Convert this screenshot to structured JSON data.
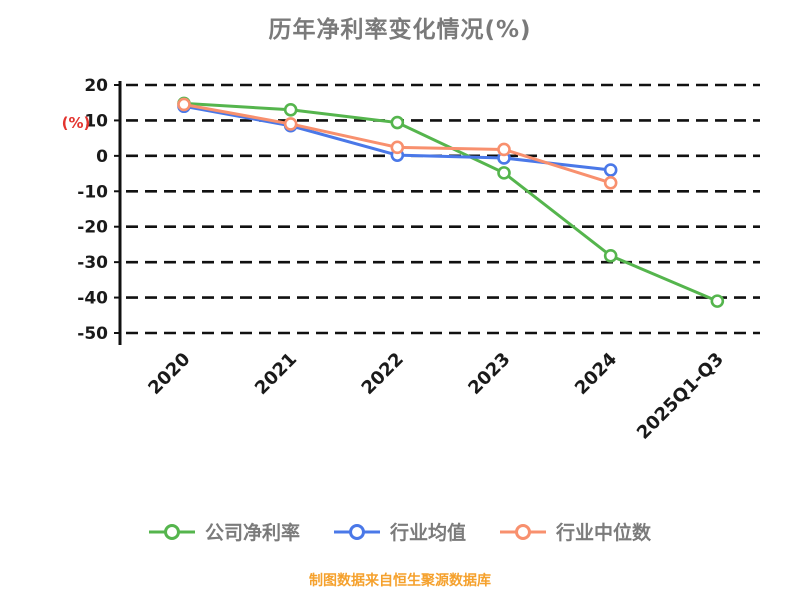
{
  "chart_data": {
    "type": "line",
    "title": "历年净利率变化情况(%)",
    "ylabel": "(%)",
    "ylim": [
      -50,
      20
    ],
    "yticks": [
      20,
      10,
      0,
      -10,
      -20,
      -30,
      -40,
      -50
    ],
    "categories": [
      "2020",
      "2021",
      "2022",
      "2023",
      "2024",
      "2025Q1-Q3"
    ],
    "series": [
      {
        "name": "公司净利率",
        "color": "#55b54d",
        "values": [
          14.8,
          13.0,
          9.4,
          -4.8,
          -28.2,
          -41.0
        ]
      },
      {
        "name": "行业均值",
        "color": "#4a78e8",
        "values": [
          14.0,
          8.5,
          0.2,
          -0.6,
          -4.0,
          null
        ]
      },
      {
        "name": "行业中位数",
        "color": "#f8906e",
        "values": [
          14.5,
          9.0,
          2.4,
          1.8,
          -7.6,
          null
        ]
      }
    ],
    "grid": "horizontal-dashed",
    "legend_position": "bottom",
    "marker_style": "open-circle"
  },
  "footer": {
    "source_note": "制图数据来自恒生聚源数据库"
  },
  "colors": {
    "title": "#7a7a7a",
    "axis_text": "#1a1a1a",
    "ylabel": "#e3342f",
    "gridline": "#111111",
    "footer": "#f5a12d",
    "background": "#ffffff"
  }
}
